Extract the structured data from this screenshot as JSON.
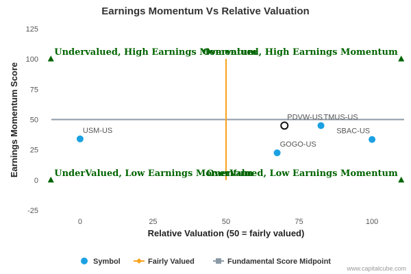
{
  "chart_data": {
    "type": "scatter",
    "title": "Earnings Momentum Vs Relative Valuation",
    "xlabel": "Relative Valuation (50 = fairly valued)",
    "ylabel": "Earnings Momentum Score",
    "xlim": [
      -11,
      111
    ],
    "ylim": [
      -25,
      125
    ],
    "x_ticks": [
      0,
      25,
      50,
      75,
      100
    ],
    "y_ticks": [
      -25,
      0,
      25,
      50,
      75,
      100,
      125
    ],
    "grid": false,
    "points": [
      {
        "label": "USM-US",
        "x": 0,
        "y": 34,
        "highlight": false
      },
      {
        "label": "GOGO-US",
        "x": 67.5,
        "y": 22.5,
        "highlight": false
      },
      {
        "label": "PDVW-US",
        "x": 70,
        "y": 45,
        "highlight": true
      },
      {
        "label": "TMUS-US",
        "x": 82.5,
        "y": 45,
        "highlight": false
      },
      {
        "label": "SBAC-US",
        "x": 100,
        "y": 33.5,
        "highlight": false
      }
    ],
    "fairly_valued_x": 50,
    "fundamental_midpoint_y": 50,
    "quadrant_labels": [
      {
        "text": "Undervalued, High Earnings Momentum",
        "x": -10,
        "y": 100,
        "align": "start"
      },
      {
        "text": "Overvalued, High Earnings Momentum",
        "x": 110,
        "y": 100,
        "align": "end"
      },
      {
        "text": "UnderValued, Low Earnings Momentum",
        "x": -10,
        "y": 0,
        "align": "start"
      },
      {
        "text": "OverValued, Low Earnings Momentum",
        "x": 110,
        "y": 0,
        "align": "end"
      }
    ],
    "corner_markers": [
      {
        "x": -10,
        "y": 100
      },
      {
        "x": 110,
        "y": 100
      },
      {
        "x": -10,
        "y": 0
      },
      {
        "x": 110,
        "y": 0
      }
    ],
    "legend": {
      "position": "bottom",
      "items": [
        {
          "name": "Symbol",
          "marker": "circle",
          "color": "#1ba1e2"
        },
        {
          "name": "Fairly Valued",
          "marker": "line-diamond",
          "color": "#f7a21b"
        },
        {
          "name": "Fundamental Score Midpoint",
          "marker": "line-square",
          "color": "#8c9aa6"
        }
      ]
    },
    "colors": {
      "point": "#1ba1e2",
      "highlight_stroke": "#111111",
      "fairly_valued": "#f7a21b",
      "midpoint": "#8c9aa6",
      "quadrant_text": "#006400",
      "corner_marker": "#006400"
    }
  },
  "credit": "www.capitalcube.com"
}
